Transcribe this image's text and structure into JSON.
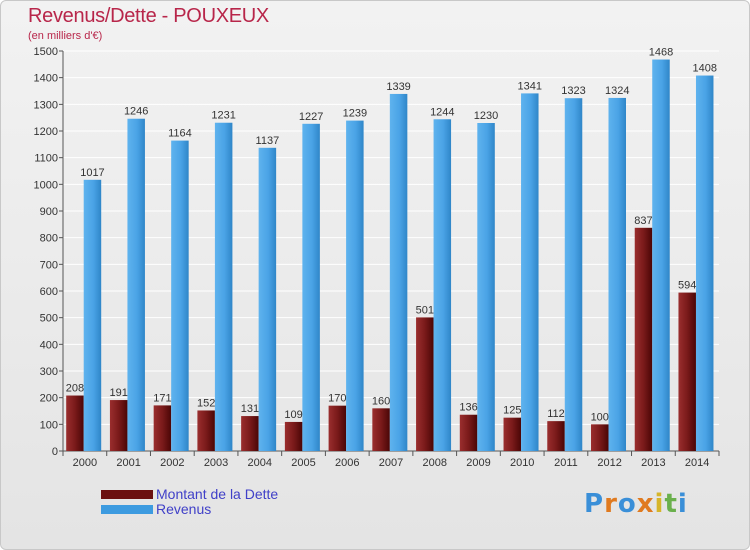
{
  "title": "Revenus/Dette - POUXEUX",
  "subtitle": "(en milliers d'€)",
  "colors": {
    "title": "#b8264a",
    "dette": "#7a1a1a",
    "revenus": "#4aa3e6",
    "legend_text": "#4040c8"
  },
  "legend": [
    {
      "label": "Montant de la Dette",
      "color": "#6b1010"
    },
    {
      "label": "Revenus",
      "color": "#3d9be0"
    }
  ],
  "logo": {
    "text": "Proxiti",
    "letters": [
      "P",
      "r",
      "o",
      "x",
      "i",
      "t",
      "i"
    ],
    "letter_colors": [
      "#3a8fd8",
      "#e07a1f",
      "#3a8fd8",
      "#e07a1f",
      "#d6b52a",
      "#6ab04c",
      "#3a8fd8"
    ]
  },
  "chart_data": {
    "type": "bar",
    "categories": [
      "2000",
      "2001",
      "2002",
      "2003",
      "2004",
      "2005",
      "2006",
      "2007",
      "2008",
      "2009",
      "2010",
      "2011",
      "2012",
      "2013",
      "2014"
    ],
    "ylim": [
      0,
      1500
    ],
    "yticks": [
      0,
      100,
      200,
      300,
      400,
      500,
      600,
      700,
      800,
      900,
      1000,
      1100,
      1200,
      1300,
      1400,
      1500
    ],
    "grid": true,
    "legend_position": "bottom-left",
    "series": [
      {
        "name": "Montant de la Dette",
        "values": [
          208,
          191,
          171,
          152,
          131,
          109,
          170,
          160,
          501,
          136,
          125,
          112,
          100,
          837,
          594
        ],
        "labels": [
          "208",
          "191",
          "171",
          "152",
          "131",
          "109",
          "170",
          "160",
          "501",
          "136",
          "125",
          "112",
          "100",
          "837",
          "594"
        ]
      },
      {
        "name": "Revenus",
        "values": [
          1017,
          1246,
          1164,
          1231,
          1137,
          1227,
          1239,
          1339,
          1244,
          1230,
          1341,
          1323,
          1324,
          1468,
          1408
        ],
        "labels": [
          "1017",
          "1246",
          "1164",
          "1231",
          "1137",
          "1227",
          "1239",
          "1339",
          "1244",
          "1230",
          "1341",
          "1323",
          "1324",
          "1468",
          "1408"
        ]
      }
    ]
  }
}
